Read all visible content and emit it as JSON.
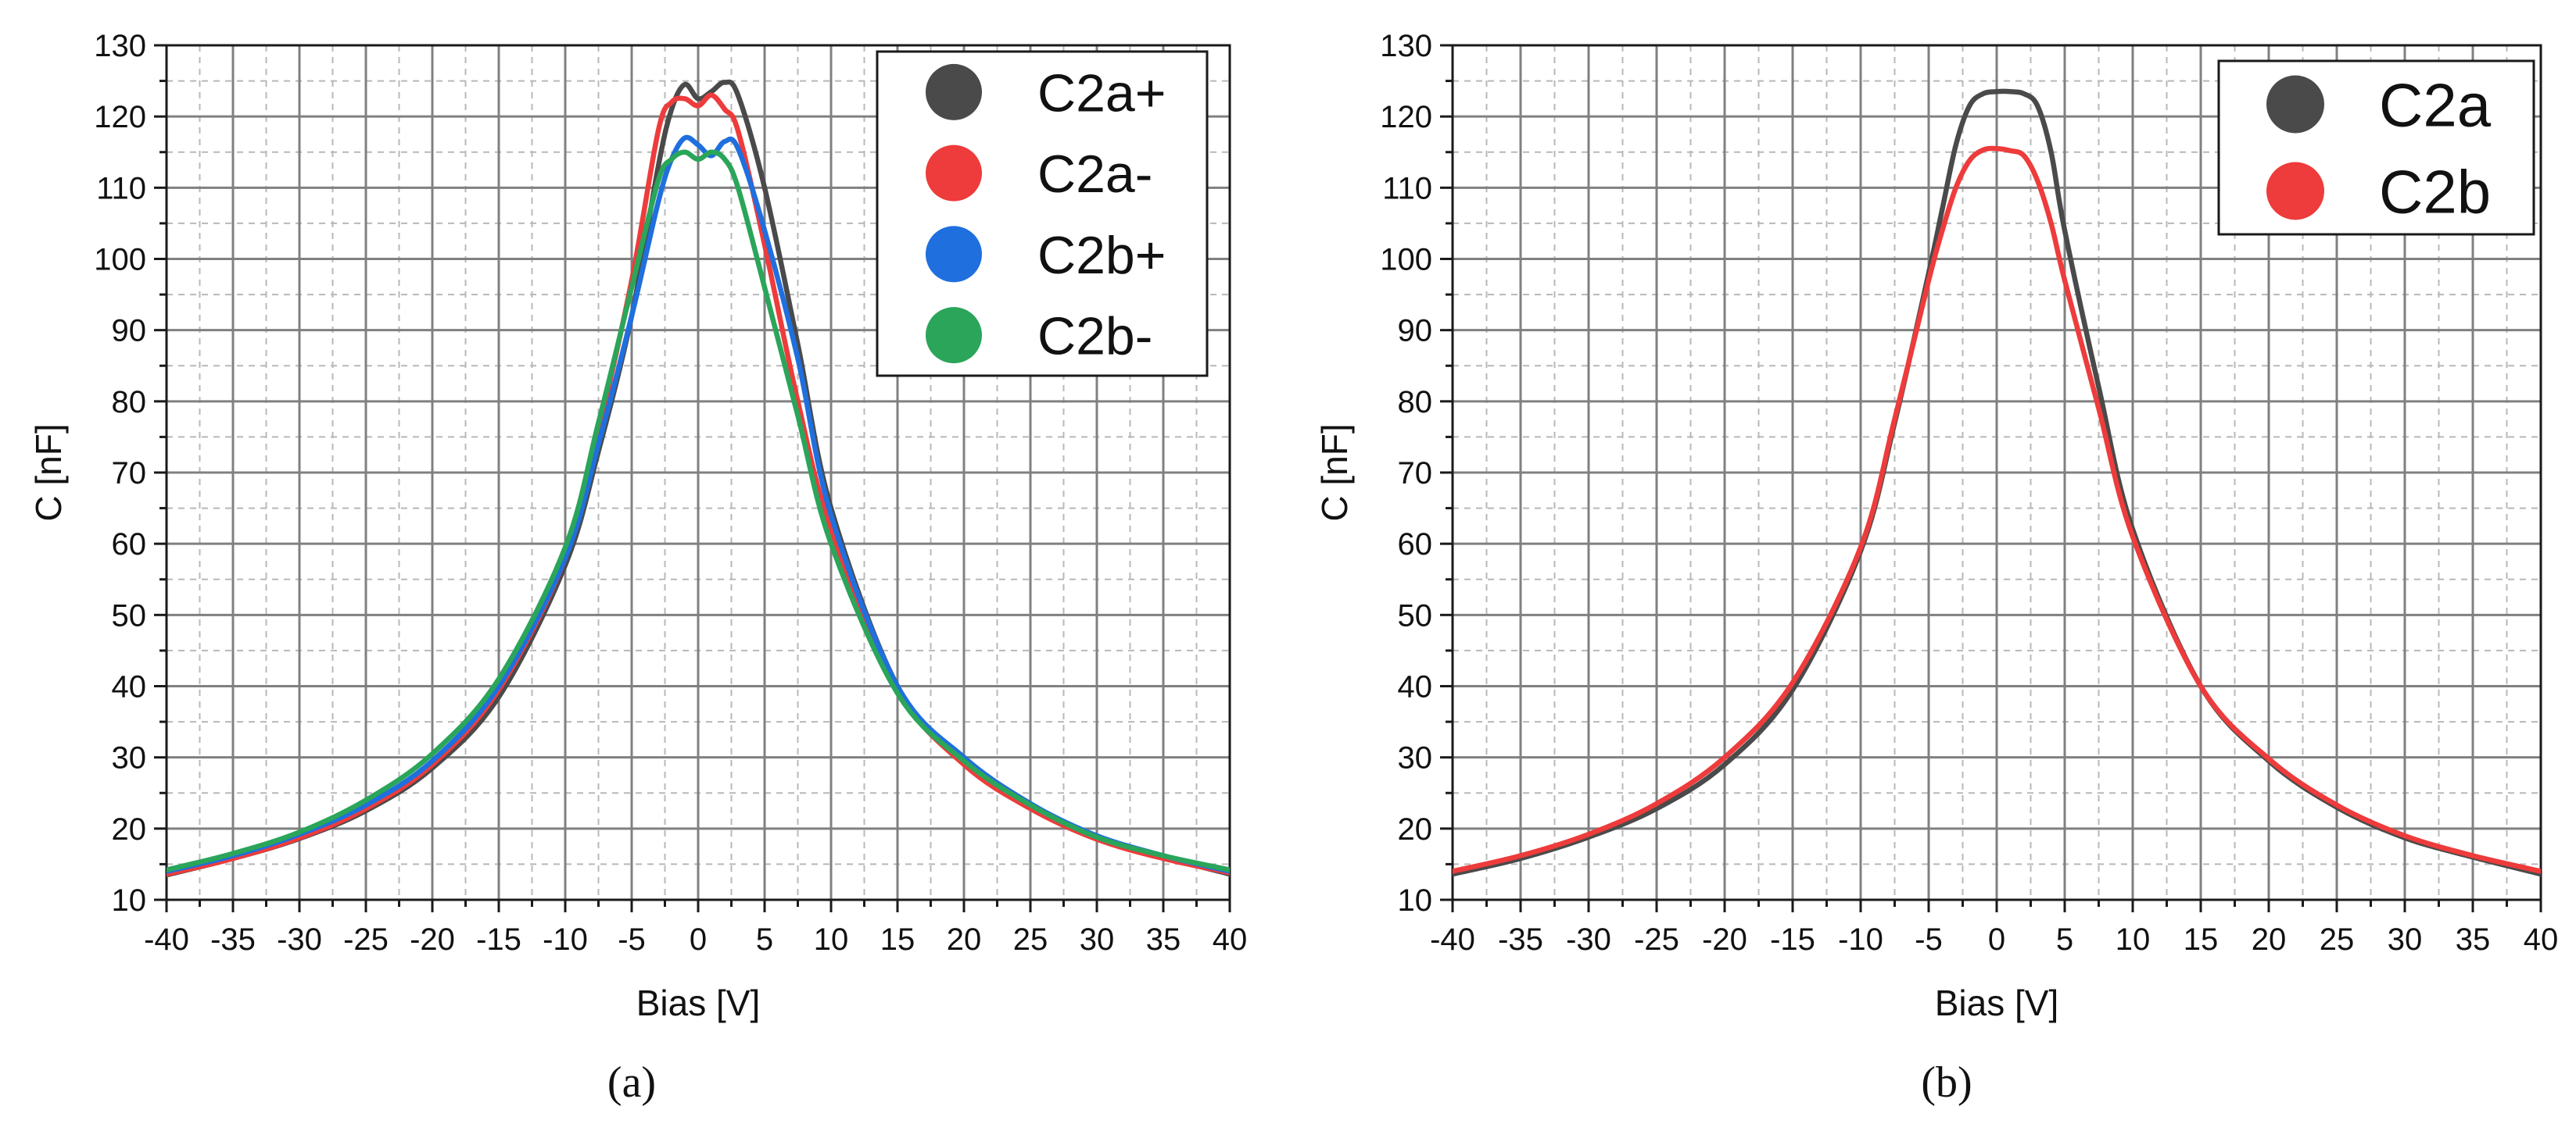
{
  "figure": {
    "panels": [
      {
        "caption_letter": "a",
        "caption": "(a)"
      },
      {
        "caption_letter": "b",
        "caption": "(b)"
      }
    ]
  },
  "chart_data": [
    {
      "id": "a",
      "type": "line",
      "title": "",
      "xlabel": "Bias [V]",
      "ylabel": "C [nF]",
      "xlim": [
        -40,
        40
      ],
      "ylim": [
        10,
        130
      ],
      "xticks": [
        -40,
        -35,
        -30,
        -25,
        -20,
        -15,
        -10,
        -5,
        0,
        5,
        10,
        15,
        20,
        25,
        30,
        35,
        40
      ],
      "yticks": [
        10,
        20,
        30,
        40,
        50,
        60,
        70,
        80,
        90,
        100,
        110,
        120,
        130
      ],
      "grid": true,
      "legend_position": "top-right",
      "series": [
        {
          "name": "C2a+",
          "color": "#4a4a4a",
          "x": [
            -40,
            -35,
            -30,
            -25,
            -20,
            -15,
            -10,
            -7.5,
            -5,
            -3,
            -2,
            -1,
            0,
            1,
            2,
            3,
            5,
            7.5,
            10,
            15,
            20,
            25,
            30,
            35,
            40
          ],
          "y": [
            13.5,
            15.8,
            18.6,
            22.5,
            28.5,
            38.5,
            57,
            73,
            92,
            113,
            121,
            124.5,
            122.5,
            123.5,
            124.8,
            123,
            110,
            88,
            65,
            40,
            30,
            23.5,
            18.8,
            16,
            13.6
          ]
        },
        {
          "name": "C2a-",
          "color": "#ee3b3b",
          "x": [
            -40,
            -35,
            -30,
            -25,
            -20,
            -15,
            -10,
            -7.5,
            -5,
            -3,
            -2,
            -1,
            0,
            1,
            2,
            3,
            5,
            7.5,
            10,
            15,
            20,
            25,
            30,
            35,
            40
          ],
          "y": [
            13.6,
            15.8,
            18.7,
            22.8,
            29,
            39.5,
            58,
            76,
            97,
            118,
            122,
            122.5,
            121.5,
            123,
            121,
            118,
            102,
            80,
            62,
            39.5,
            29,
            22.8,
            18.5,
            15.8,
            13.8
          ]
        },
        {
          "name": "C2b+",
          "color": "#1f6fdf",
          "x": [
            -40,
            -35,
            -30,
            -25,
            -20,
            -15,
            -10,
            -7.5,
            -5,
            -3,
            -2,
            -1,
            0,
            1,
            2,
            3,
            5,
            7.5,
            10,
            15,
            20,
            25,
            30,
            35,
            40
          ],
          "y": [
            14,
            16.2,
            19.2,
            23.3,
            29.5,
            40,
            58,
            74,
            92,
            108,
            114,
            117,
            116,
            114.5,
            116.5,
            115.5,
            104,
            86,
            64,
            40,
            30,
            23.5,
            19,
            16.2,
            14
          ]
        },
        {
          "name": "C2b-",
          "color": "#2aa55a",
          "x": [
            -40,
            -35,
            -30,
            -25,
            -20,
            -15,
            -10,
            -7.5,
            -5,
            -3,
            -2,
            -1,
            0,
            1,
            2,
            3,
            5,
            7.5,
            10,
            15,
            20,
            25,
            30,
            35,
            40
          ],
          "y": [
            14.2,
            16.5,
            19.5,
            24,
            30.5,
            41,
            59.5,
            77,
            96,
            111,
            114,
            115,
            114,
            115,
            114,
            110,
            96,
            78,
            60,
            39,
            29.5,
            23.3,
            18.8,
            16.2,
            14.2
          ]
        }
      ]
    },
    {
      "id": "b",
      "type": "line",
      "title": "",
      "xlabel": "Bias [V]",
      "ylabel": "C [nF]",
      "xlim": [
        -40,
        40
      ],
      "ylim": [
        10,
        130
      ],
      "xticks": [
        -40,
        -35,
        -30,
        -25,
        -20,
        -15,
        -10,
        -5,
        0,
        5,
        10,
        15,
        20,
        25,
        30,
        35,
        40
      ],
      "yticks": [
        10,
        20,
        30,
        40,
        50,
        60,
        70,
        80,
        90,
        100,
        110,
        120,
        130
      ],
      "grid": true,
      "legend_position": "top-right",
      "series": [
        {
          "name": "C2a",
          "color": "#4a4a4a",
          "x": [
            -40,
            -35,
            -30,
            -25,
            -20,
            -15,
            -10,
            -7.5,
            -5,
            -4,
            -3,
            -2,
            -1,
            0,
            1,
            2,
            3,
            4,
            5,
            7.5,
            10,
            15,
            20,
            25,
            30,
            35,
            40
          ],
          "y": [
            13.6,
            15.8,
            18.8,
            22.8,
            29,
            39.5,
            59,
            77,
            98,
            107,
            116,
            121.5,
            123.2,
            123.5,
            123.5,
            123.2,
            121.5,
            115,
            104,
            82,
            62,
            40,
            29.5,
            23,
            18.7,
            16,
            13.6
          ]
        },
        {
          "name": "C2b",
          "color": "#ee3b3b",
          "x": [
            -40,
            -35,
            -30,
            -25,
            -20,
            -15,
            -10,
            -7.5,
            -5,
            -4,
            -3,
            -2,
            -1,
            0,
            1,
            2,
            3,
            4,
            5,
            7.5,
            10,
            15,
            20,
            25,
            30,
            35,
            40
          ],
          "y": [
            14,
            16.2,
            19.2,
            23.5,
            30,
            40.5,
            59.5,
            77.5,
            97,
            104,
            110,
            113.8,
            115.3,
            115.5,
            115.2,
            114.5,
            111,
            105,
            97,
            79,
            61,
            40,
            29.8,
            23.3,
            19,
            16.2,
            14
          ]
        }
      ]
    }
  ]
}
